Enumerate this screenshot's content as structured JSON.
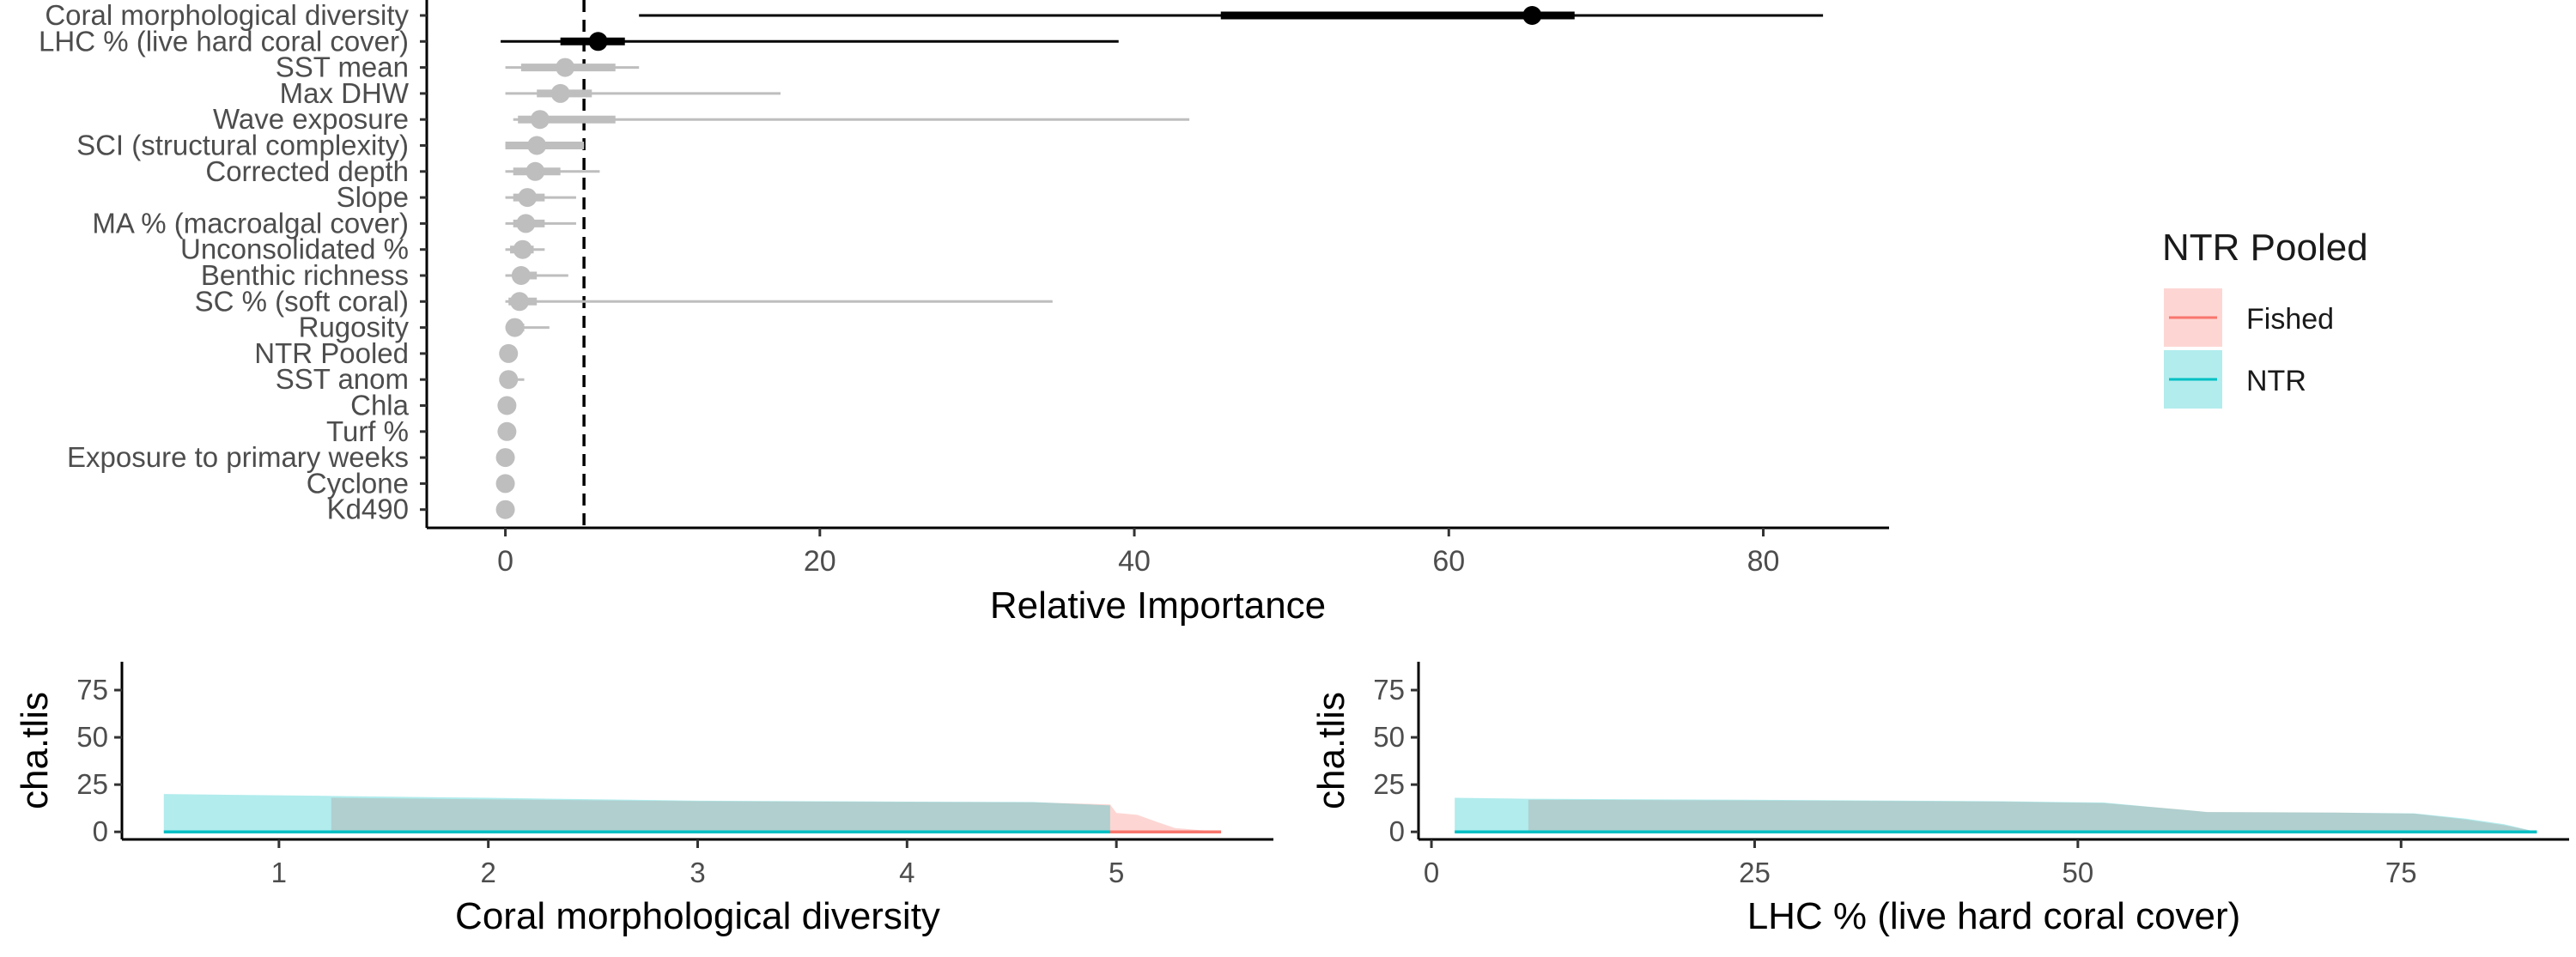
{
  "colors": {
    "fished": "#F8766D",
    "fished_fill": "#F8766D",
    "ntr": "#00BFC4",
    "ntr_fill": "#00BFC4",
    "highlight": "#000000",
    "other": "#BEBEBE"
  },
  "chart_data": [
    {
      "type": "scatter",
      "subtype": "dot-and-interval",
      "xlabel": "Relative Importance",
      "ylabel": "",
      "xlim": [
        -5,
        88
      ],
      "xticks": [
        0,
        20,
        40,
        60,
        80
      ],
      "reference_line": 5,
      "grid": false,
      "variables": [
        {
          "name": "Coral morphological diversity",
          "median": 65.3,
          "inner": [
            45.5,
            68.0
          ],
          "outer": [
            8.5,
            83.8
          ],
          "highlight": true
        },
        {
          "name": "LHC % (live hard coral cover)",
          "median": 5.9,
          "inner": [
            3.5,
            7.6
          ],
          "outer": [
            -0.3,
            39.0
          ],
          "highlight": true
        },
        {
          "name": "SST mean",
          "median": 3.8,
          "inner": [
            1.0,
            7.0
          ],
          "outer": [
            0.0,
            8.5
          ],
          "highlight": false
        },
        {
          "name": "Max DHW",
          "median": 3.5,
          "inner": [
            2.0,
            5.5
          ],
          "outer": [
            0.0,
            17.5
          ],
          "highlight": false
        },
        {
          "name": "Wave exposure",
          "median": 2.2,
          "inner": [
            0.8,
            7.0
          ],
          "outer": [
            0.5,
            43.5
          ],
          "highlight": false
        },
        {
          "name": "SCI (structural complexity)",
          "median": 2.0,
          "inner": [
            0.0,
            5.0
          ],
          "outer": [
            0.0,
            5.0
          ],
          "highlight": false
        },
        {
          "name": "Corrected depth",
          "median": 1.9,
          "inner": [
            0.5,
            3.5
          ],
          "outer": [
            0.0,
            6.0
          ],
          "highlight": false
        },
        {
          "name": "Slope",
          "median": 1.4,
          "inner": [
            0.5,
            2.5
          ],
          "outer": [
            0.0,
            4.5
          ],
          "highlight": false
        },
        {
          "name": "MA % (macroalgal cover)",
          "median": 1.3,
          "inner": [
            0.5,
            2.5
          ],
          "outer": [
            0.0,
            4.5
          ],
          "highlight": false
        },
        {
          "name": "Unconsolidated %",
          "median": 1.1,
          "inner": [
            0.3,
            1.8
          ],
          "outer": [
            0.0,
            2.5
          ],
          "highlight": false
        },
        {
          "name": "Benthic richness",
          "median": 1.0,
          "inner": [
            0.5,
            2.0
          ],
          "outer": [
            0.0,
            4.0
          ],
          "highlight": false
        },
        {
          "name": "SC % (soft coral)",
          "median": 0.9,
          "inner": [
            0.2,
            2.0
          ],
          "outer": [
            0.0,
            34.8
          ],
          "highlight": false
        },
        {
          "name": "Rugosity",
          "median": 0.6,
          "inner": [
            0.1,
            1.2
          ],
          "outer": [
            0.0,
            2.8
          ],
          "highlight": false
        },
        {
          "name": "NTR Pooled",
          "median": 0.2,
          "inner": [
            0.0,
            0.4
          ],
          "outer": [
            0.0,
            0.6
          ],
          "highlight": false
        },
        {
          "name": "SST anom",
          "median": 0.2,
          "inner": [
            0.0,
            0.5
          ],
          "outer": [
            0.0,
            1.2
          ],
          "highlight": false
        },
        {
          "name": "Chla",
          "median": 0.1,
          "inner": [
            0.0,
            0.3
          ],
          "outer": [
            0.0,
            0.5
          ],
          "highlight": false
        },
        {
          "name": "Turf %",
          "median": 0.1,
          "inner": [
            0.0,
            0.3
          ],
          "outer": [
            0.0,
            0.5
          ],
          "highlight": false
        },
        {
          "name": "Exposure to primary weeks",
          "median": 0.0,
          "inner": [
            0.0,
            0.2
          ],
          "outer": [
            0.0,
            0.4
          ],
          "highlight": false
        },
        {
          "name": "Cyclone",
          "median": 0.0,
          "inner": [
            0.0,
            0.2
          ],
          "outer": [
            0.0,
            0.3
          ],
          "highlight": false
        },
        {
          "name": "Kd490",
          "median": 0.0,
          "inner": [
            0.0,
            0.1
          ],
          "outer": [
            0.0,
            0.2
          ],
          "highlight": false
        }
      ]
    },
    {
      "type": "area",
      "xlabel": "Coral morphological diversity",
      "ylabel": "cha.tlis",
      "xlim": [
        0.25,
        5.75
      ],
      "ylim": [
        -4,
        90
      ],
      "xticks": [
        1,
        2,
        3,
        4,
        5
      ],
      "yticks": [
        0,
        25,
        50,
        75
      ],
      "legend_title": "NTR Pooled",
      "legend_position": "right",
      "series": [
        {
          "name": "Fished",
          "color_key": "fished",
          "line": [
            [
              1.25,
              0
            ],
            [
              5.5,
              0
            ]
          ],
          "ribbon": [
            [
              1.25,
              0,
              18
            ],
            [
              2.0,
              0,
              17.2
            ],
            [
              3.0,
              0,
              16.2
            ],
            [
              4.0,
              0,
              15.8
            ],
            [
              4.6,
              0,
              15.6
            ],
            [
              4.97,
              0,
              14.5
            ],
            [
              5.0,
              0,
              10
            ],
            [
              5.1,
              0,
              9
            ],
            [
              5.2,
              0,
              5
            ],
            [
              5.28,
              0,
              2
            ],
            [
              5.5,
              0,
              0
            ]
          ]
        },
        {
          "name": "NTR",
          "color_key": "ntr",
          "line": [
            [
              0.45,
              0
            ],
            [
              4.97,
              0
            ]
          ],
          "ribbon": [
            [
              0.45,
              0,
              20
            ],
            [
              1.25,
              0,
              19
            ],
            [
              2.0,
              0,
              18
            ],
            [
              3.0,
              0,
              16.5
            ],
            [
              4.0,
              0,
              16
            ],
            [
              4.6,
              0,
              15.8
            ],
            [
              4.97,
              0,
              14
            ]
          ]
        }
      ]
    },
    {
      "type": "area",
      "xlabel": "LHC % (live hard coral cover)",
      "ylabel": "cha.tlis",
      "xlim": [
        -1,
        88
      ],
      "ylim": [
        -4,
        90
      ],
      "xticks": [
        0,
        25,
        50,
        75
      ],
      "yticks": [
        0,
        25,
        50,
        75
      ],
      "legend_title": "NTR Pooled",
      "legend_position": "right",
      "series": [
        {
          "name": "Fished",
          "color_key": "fished",
          "line": [
            [
              7.5,
              0
            ],
            [
              85.5,
              0
            ]
          ],
          "ribbon": [
            [
              7.5,
              0,
              17
            ],
            [
              30,
              0,
              16.5
            ],
            [
              44,
              0,
              16
            ],
            [
              52,
              0,
              15.2
            ],
            [
              56,
              0,
              13
            ],
            [
              60,
              0,
              10.5
            ],
            [
              70,
              0,
              10.2
            ],
            [
              76,
              0,
              9.6
            ],
            [
              80,
              0,
              6.5
            ],
            [
              83,
              0,
              3.5
            ],
            [
              85.5,
              0,
              0
            ]
          ]
        },
        {
          "name": "NTR",
          "color_key": "ntr",
          "line": [
            [
              1.8,
              0
            ],
            [
              85.5,
              0
            ]
          ],
          "ribbon": [
            [
              1.8,
              0,
              18
            ],
            [
              7.5,
              0,
              17.5
            ],
            [
              30,
              0,
              16.8
            ],
            [
              44,
              0,
              16.2
            ],
            [
              52,
              0,
              15.5
            ],
            [
              56,
              0,
              13
            ],
            [
              60,
              0,
              10.5
            ],
            [
              70,
              0,
              10.2
            ],
            [
              76,
              0,
              9.8
            ],
            [
              80,
              0,
              7
            ],
            [
              83,
              0,
              4
            ],
            [
              85.5,
              0,
              0
            ]
          ]
        }
      ]
    }
  ]
}
